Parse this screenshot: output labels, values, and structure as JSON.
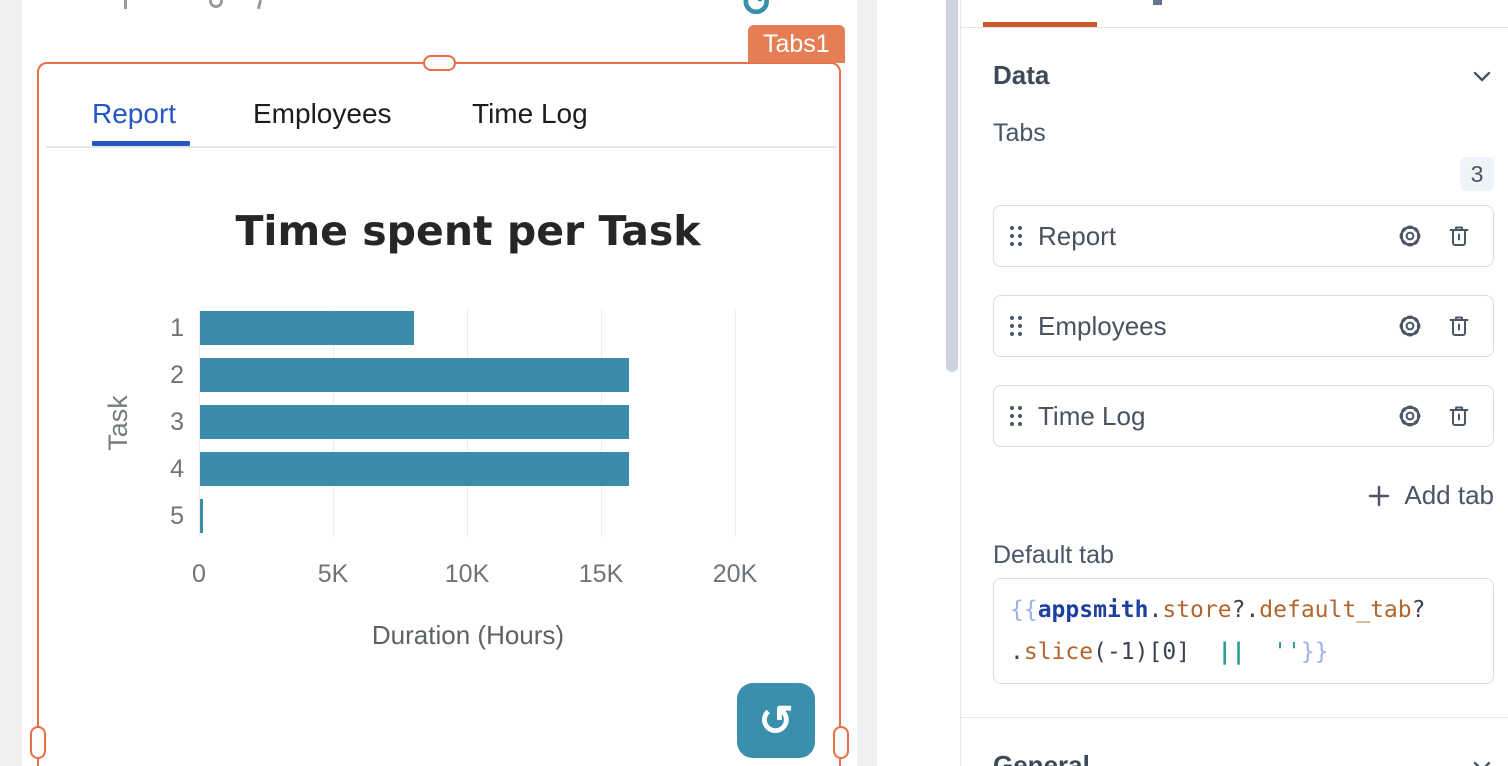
{
  "canvas": {
    "widget_badge": "Tabs1",
    "widget_tabs": {
      "items": [
        "Report",
        "Employees",
        "Time Log"
      ],
      "active": "Report"
    },
    "refresh_icon_glyph": "↺"
  },
  "chart_data": {
    "type": "bar",
    "orientation": "horizontal",
    "title": "Time spent per Task",
    "xlabel": "Duration (Hours)",
    "ylabel": "Task",
    "categories": [
      "1",
      "2",
      "3",
      "4",
      "5"
    ],
    "values": [
      8000,
      16000,
      16000,
      16000,
      100
    ],
    "xlim": [
      0,
      20000
    ],
    "xticks": [
      "0",
      "5K",
      "10K",
      "15K",
      "20K"
    ],
    "bar_color": "#3a8caa",
    "grid": true,
    "legend": false
  },
  "pane": {
    "sections": {
      "data": "Data",
      "general": "General"
    },
    "tabs_label": "Tabs",
    "count_badge": "3",
    "tab_items": [
      {
        "label": "Report"
      },
      {
        "label": "Employees"
      },
      {
        "label": "Time Log"
      }
    ],
    "add_tab_label": "Add tab",
    "default_tab_label": "Default tab",
    "code_tokens": [
      {
        "t": "{{",
        "c": "brace"
      },
      {
        "t": "appsmith",
        "c": "kw"
      },
      {
        "t": ".",
        "c": "plain"
      },
      {
        "t": "store",
        "c": "prop"
      },
      {
        "t": "?.",
        "c": "plain"
      },
      {
        "t": "default_tab",
        "c": "prop"
      },
      {
        "t": "?",
        "c": "plain"
      },
      {
        "t": "\n",
        "c": "plain"
      },
      {
        "t": ".",
        "c": "plain"
      },
      {
        "t": "slice",
        "c": "prop"
      },
      {
        "t": "(-1)[0]",
        "c": "plain"
      },
      {
        "t": "  ",
        "c": "plain"
      },
      {
        "t": "||",
        "c": "op"
      },
      {
        "t": "  ",
        "c": "plain"
      },
      {
        "t": "''",
        "c": "str"
      },
      {
        "t": "}}",
        "c": "brace"
      }
    ]
  }
}
